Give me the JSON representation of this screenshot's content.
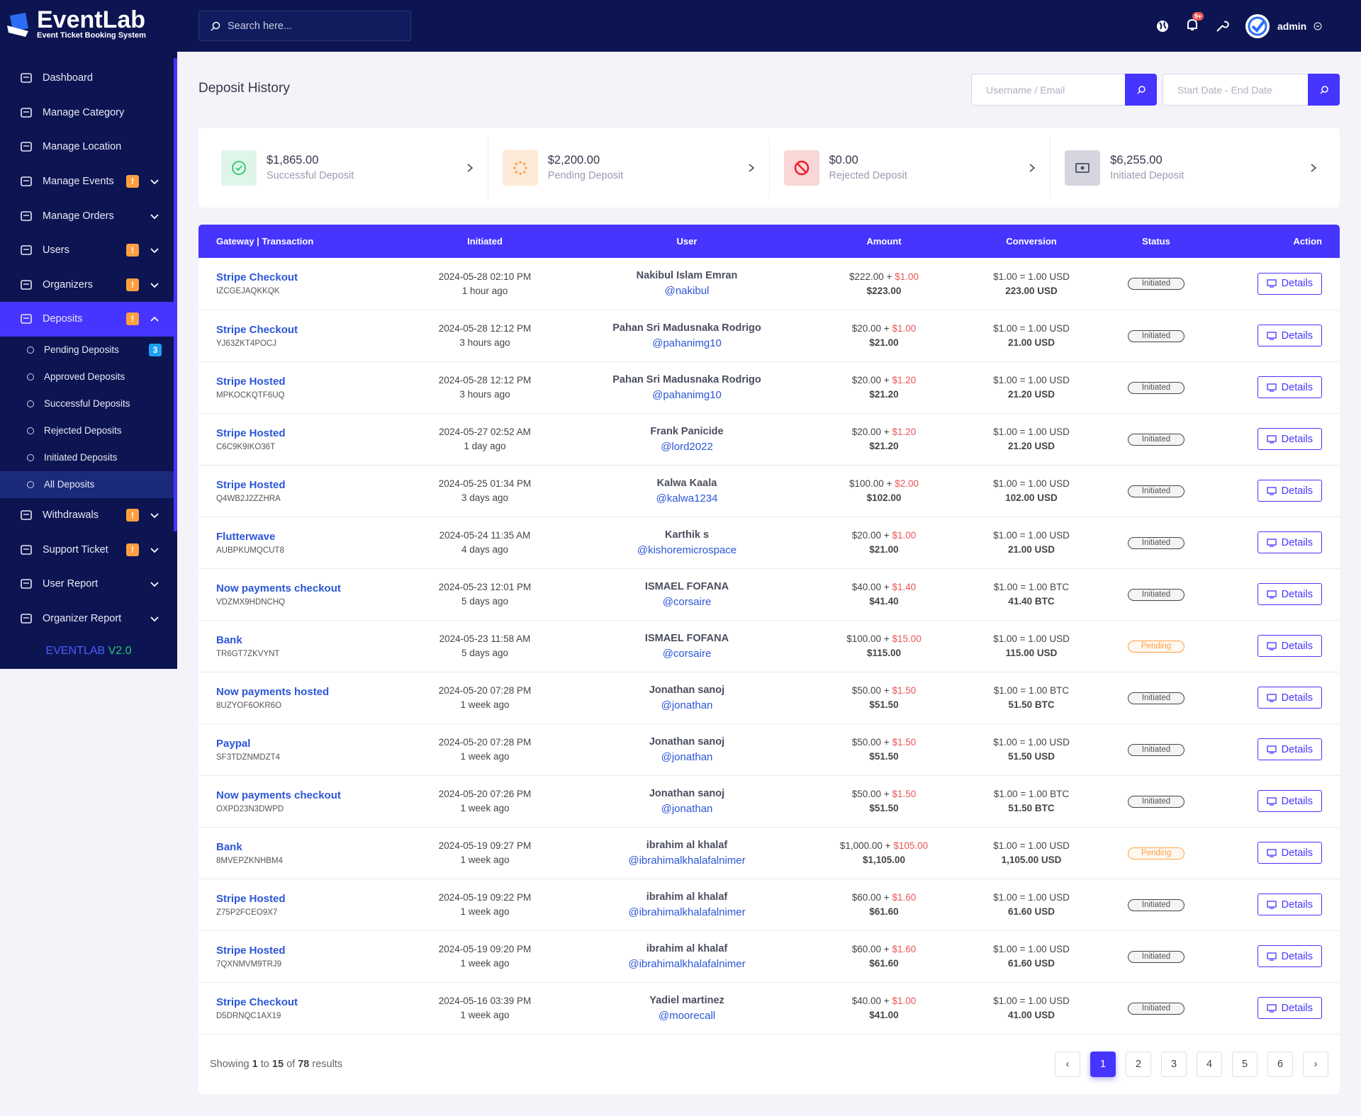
{
  "brand": {
    "name": "EventLab",
    "tagline": "Event Ticket Booking System",
    "footer_name": "EVENTLAB",
    "footer_version": "V2.0"
  },
  "header": {
    "search_placeholder": "Search here...",
    "notification_badge": "9+",
    "user": "admin"
  },
  "sidebar": {
    "items": [
      {
        "label": "Dashboard"
      },
      {
        "label": "Manage Category"
      },
      {
        "label": "Manage Location"
      },
      {
        "label": "Manage Events",
        "badge": "!"
      },
      {
        "label": "Manage Orders"
      },
      {
        "label": "Users",
        "badge": "!"
      },
      {
        "label": "Organizers",
        "badge": "!"
      },
      {
        "label": "Deposits",
        "badge": "!",
        "active": true,
        "submenu": [
          {
            "label": "Pending Deposits",
            "badge": "3"
          },
          {
            "label": "Approved Deposits"
          },
          {
            "label": "Successful Deposits"
          },
          {
            "label": "Rejected Deposits"
          },
          {
            "label": "Initiated Deposits"
          },
          {
            "label": "All Deposits",
            "active": true
          }
        ]
      },
      {
        "label": "Withdrawals",
        "badge": "!"
      },
      {
        "label": "Support Ticket",
        "badge": "!"
      },
      {
        "label": "User Report"
      },
      {
        "label": "Organizer Report"
      }
    ]
  },
  "page": {
    "title": "Deposit History",
    "search_placeholder": "Username / Email",
    "date_placeholder": "Start Date - End Date"
  },
  "stats": [
    {
      "value": "$1,865.00",
      "label": "Successful Deposit"
    },
    {
      "value": "$2,200.00",
      "label": "Pending Deposit"
    },
    {
      "value": "$0.00",
      "label": "Rejected Deposit"
    },
    {
      "value": "$6,255.00",
      "label": "Initiated Deposit"
    }
  ],
  "table": {
    "columns": [
      "Gateway | Transaction",
      "Initiated",
      "User",
      "Amount",
      "Conversion",
      "Status",
      "Action"
    ],
    "plus": "+",
    "action_label": "Details",
    "rows": [
      [
        "Stripe Checkout",
        "IZCGEJAQKKQK",
        "2024-05-28 02:10 PM",
        "1 hour ago",
        "Nakibul Islam Emran",
        "@nakibul",
        "$222.00",
        "$1.00",
        "$223.00",
        "$1.00 = 1.00 USD",
        "223.00 USD",
        "Initiated"
      ],
      [
        "Stripe Checkout",
        "YJ63ZKT4POCJ",
        "2024-05-28 12:12 PM",
        "3 hours ago",
        "Pahan Sri Madusnaka Rodrigo",
        "@pahanimg10",
        "$20.00",
        "$1.00",
        "$21.00",
        "$1.00 = 1.00 USD",
        "21.00 USD",
        "Initiated"
      ],
      [
        "Stripe Hosted",
        "MPKOCKQTF6UQ",
        "2024-05-28 12:12 PM",
        "3 hours ago",
        "Pahan Sri Madusnaka Rodrigo",
        "@pahanimg10",
        "$20.00",
        "$1.20",
        "$21.20",
        "$1.00 = 1.00 USD",
        "21.20 USD",
        "Initiated"
      ],
      [
        "Stripe Hosted",
        "C6C9K9IKO36T",
        "2024-05-27 02:52 AM",
        "1 day ago",
        "Frank Panicide",
        "@lord2022",
        "$20.00",
        "$1.20",
        "$21.20",
        "$1.00 = 1.00 USD",
        "21.20 USD",
        "Initiated"
      ],
      [
        "Stripe Hosted",
        "Q4WB2J2ZZHRA",
        "2024-05-25 01:34 PM",
        "3 days ago",
        "Kalwa Kaala",
        "@kalwa1234",
        "$100.00",
        "$2.00",
        "$102.00",
        "$1.00 = 1.00 USD",
        "102.00 USD",
        "Initiated"
      ],
      [
        "Flutterwave",
        "AUBPKUMQCUT8",
        "2024-05-24 11:35 AM",
        "4 days ago",
        "Karthik s",
        "@kishoremicrospace",
        "$20.00",
        "$1.00",
        "$21.00",
        "$1.00 = 1.00 USD",
        "21.00 USD",
        "Initiated"
      ],
      [
        "Now payments checkout",
        "VDZMX9HDNCHQ",
        "2024-05-23 12:01 PM",
        "5 days ago",
        "ISMAEL FOFANA",
        "@corsaire",
        "$40.00",
        "$1.40",
        "$41.40",
        "$1.00 = 1.00 BTC",
        "41.40 BTC",
        "Initiated"
      ],
      [
        "Bank",
        "TR6GT7ZKVYNT",
        "2024-05-23 11:58 AM",
        "5 days ago",
        "ISMAEL FOFANA",
        "@corsaire",
        "$100.00",
        "$15.00",
        "$115.00",
        "$1.00 = 1.00 USD",
        "115.00 USD",
        "Pending"
      ],
      [
        "Now payments hosted",
        "8UZYOF6OKR6O",
        "2024-05-20 07:28 PM",
        "1 week ago",
        "Jonathan sanoj",
        "@jonathan",
        "$50.00",
        "$1.50",
        "$51.50",
        "$1.00 = 1.00 BTC",
        "51.50 BTC",
        "Initiated"
      ],
      [
        "Paypal",
        "SF3TDZNMDZT4",
        "2024-05-20 07:28 PM",
        "1 week ago",
        "Jonathan sanoj",
        "@jonathan",
        "$50.00",
        "$1.50",
        "$51.50",
        "$1.00 = 1.00 USD",
        "51.50 USD",
        "Initiated"
      ],
      [
        "Now payments checkout",
        "OXPD23N3DWPD",
        "2024-05-20 07:26 PM",
        "1 week ago",
        "Jonathan sanoj",
        "@jonathan",
        "$50.00",
        "$1.50",
        "$51.50",
        "$1.00 = 1.00 BTC",
        "51.50 BTC",
        "Initiated"
      ],
      [
        "Bank",
        "8MVEPZKNHBM4",
        "2024-05-19 09:27 PM",
        "1 week ago",
        "ibrahim al khalaf",
        "@ibrahimalkhalafalnimer",
        "$1,000.00",
        "$105.00",
        "$1,105.00",
        "$1.00 = 1.00 USD",
        "1,105.00 USD",
        "Pending"
      ],
      [
        "Stripe Hosted",
        "Z75P2FCEO9X7",
        "2024-05-19 09:22 PM",
        "1 week ago",
        "ibrahim al khalaf",
        "@ibrahimalkhalafalnimer",
        "$60.00",
        "$1.60",
        "$61.60",
        "$1.00 = 1.00 USD",
        "61.60 USD",
        "Initiated"
      ],
      [
        "Stripe Hosted",
        "7QXNMVM9TRJ9",
        "2024-05-19 09:20 PM",
        "1 week ago",
        "ibrahim al khalaf",
        "@ibrahimalkhalafalnimer",
        "$60.00",
        "$1.60",
        "$61.60",
        "$1.00 = 1.00 USD",
        "61.60 USD",
        "Initiated"
      ],
      [
        "Stripe Checkout",
        "D5DRNQC1AX19",
        "2024-05-16 03:39 PM",
        "1 week ago",
        "Yadiel martinez",
        "@moorecall",
        "$40.00",
        "$1.00",
        "$41.00",
        "$1.00 = 1.00 USD",
        "41.00 USD",
        "Initiated"
      ]
    ]
  },
  "pagination": {
    "showing": "Showing",
    "from": "1",
    "to_word": "to",
    "to": "15",
    "of_word": "of",
    "total": "78",
    "results": "results",
    "prev": "‹",
    "next": "›",
    "pages": [
      "1",
      "2",
      "3",
      "4",
      "5",
      "6"
    ]
  }
}
